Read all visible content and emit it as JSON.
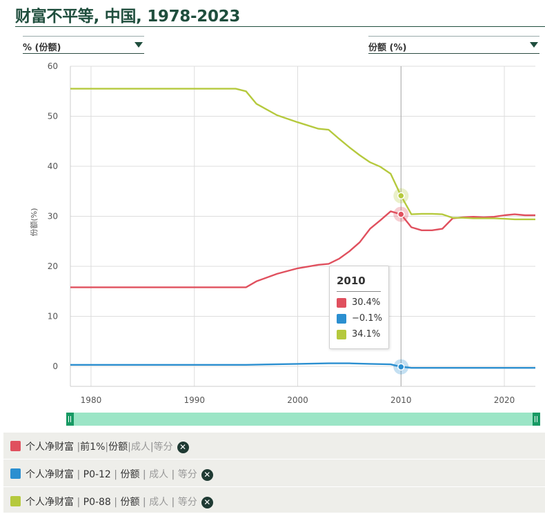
{
  "title": "财富不平等, 中国, 1978-2023",
  "dropdowns": {
    "left_label": "% (份额)",
    "right_label": "份额 (%)"
  },
  "tooltip": {
    "title": "2010",
    "rows": [
      {
        "value": "30.4%",
        "color": "#e0505e"
      },
      {
        "value": "−0.1%",
        "color": "#2b8fd0"
      },
      {
        "value": "34.1%",
        "color": "#b5c93d"
      }
    ]
  },
  "legend": [
    {
      "color": "#e0505e",
      "p1": "个人净财富",
      "p2": "前1%",
      "p3": "份额",
      "p4": "成人",
      "p5": "等分"
    },
    {
      "color": "#2b8fd0",
      "p1": "个人净财富",
      "p2": "P0-12",
      "p3": "份额",
      "p4": "成人",
      "p5": "等分"
    },
    {
      "color": "#b5c93d",
      "p1": "个人净财富",
      "p2": "P0-88",
      "p3": "份额",
      "p4": "成人",
      "p5": "等分"
    }
  ],
  "chart_data": {
    "type": "line",
    "ylabel": "份额(%)",
    "xlim": [
      1978,
      2023
    ],
    "ylim": [
      -4,
      60
    ],
    "x_ticks": [
      1980,
      1990,
      2000,
      2010,
      2020
    ],
    "y_ticks": [
      0,
      10,
      20,
      30,
      40,
      50,
      60
    ],
    "grid": true,
    "highlight_x": 2010,
    "series": [
      {
        "name": "个人净财富 | 前1% | 份额 | 成人 | 等分",
        "color": "#e0505e",
        "x": [
          1978,
          1995,
          1996,
          1998,
          2000,
          2002,
          2003,
          2004,
          2005,
          2006,
          2007,
          2008,
          2009,
          2010,
          2011,
          2012,
          2013,
          2014,
          2015,
          2016,
          2017,
          2018,
          2019,
          2020,
          2021,
          2022,
          2023
        ],
        "y": [
          15.8,
          15.8,
          17.0,
          18.5,
          19.6,
          20.3,
          20.5,
          21.5,
          23.0,
          24.8,
          27.5,
          29.2,
          31.0,
          30.4,
          27.8,
          27.2,
          27.2,
          27.5,
          29.6,
          29.8,
          29.9,
          29.8,
          29.9,
          30.2,
          30.4,
          30.2,
          30.2
        ]
      },
      {
        "name": "个人净财富 | P0-12 | 份额 | 成人 | 等分",
        "color": "#2b8fd0",
        "x": [
          1978,
          1995,
          2000,
          2003,
          2005,
          2007,
          2009,
          2010,
          2011,
          2015,
          2020,
          2023
        ],
        "y": [
          0.3,
          0.3,
          0.5,
          0.6,
          0.6,
          0.5,
          0.4,
          -0.1,
          -0.3,
          -0.3,
          -0.3,
          -0.3
        ]
      },
      {
        "name": "个人净财富 | P0-88 | 份额 | 成人 | 等分",
        "color": "#b5c93d",
        "x": [
          1978,
          1994,
          1995,
          1996,
          1998,
          2000,
          2002,
          2003,
          2004,
          2005,
          2006,
          2007,
          2008,
          2009,
          2010,
          2011,
          2012,
          2013,
          2014,
          2015,
          2016,
          2017,
          2018,
          2019,
          2020,
          2021,
          2022,
          2023
        ],
        "y": [
          55.5,
          55.5,
          55.0,
          52.5,
          50.2,
          48.8,
          47.5,
          47.3,
          45.5,
          43.8,
          42.2,
          40.8,
          39.9,
          38.5,
          34.1,
          30.4,
          30.5,
          30.5,
          30.4,
          29.7,
          29.7,
          29.6,
          29.6,
          29.6,
          29.5,
          29.4,
          29.4,
          29.4
        ]
      }
    ]
  }
}
